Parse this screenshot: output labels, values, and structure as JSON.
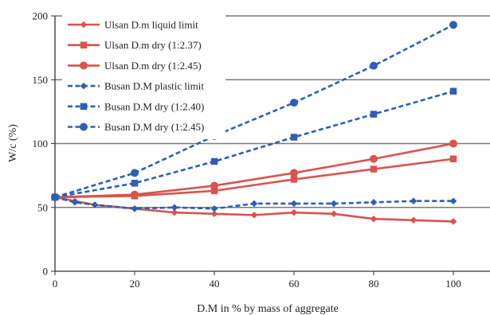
{
  "chart_data": {
    "type": "line",
    "xlabel": "D.M in % by mass of aggregate",
    "ylabel": "W/c (%)",
    "xlim": [
      0,
      100
    ],
    "ylim": [
      0,
      200
    ],
    "x_ticks": [
      "0",
      "20",
      "40",
      "60",
      "80",
      "100"
    ],
    "y_ticks": [
      "0",
      "50",
      "100",
      "150",
      "200"
    ],
    "grid": "horizontal",
    "legend_position": "top-left",
    "series": [
      {
        "name": "Ulsan D.m liquid limit",
        "color": "#d9534f",
        "line": "solid",
        "marker": "diamond",
        "x": [
          0,
          5,
          10,
          20,
          30,
          40,
          50,
          60,
          70,
          80,
          90,
          100
        ],
        "y": [
          58,
          55,
          52,
          49,
          46,
          45,
          44,
          46,
          45,
          41,
          40,
          39
        ]
      },
      {
        "name": "Ulsan D.m dry (1:2.37)",
        "color": "#d9534f",
        "line": "solid",
        "marker": "square",
        "x": [
          0,
          20,
          40,
          60,
          80,
          100
        ],
        "y": [
          58,
          59,
          63,
          72,
          80,
          88
        ]
      },
      {
        "name": " Ulsan D.m dry (1:2.45)",
        "color": "#d9534f",
        "line": "solid",
        "marker": "circle",
        "x": [
          0,
          20,
          40,
          60,
          80,
          100
        ],
        "y": [
          58,
          60,
          67,
          77,
          88,
          100
        ]
      },
      {
        "name": "Busan D.M plastic limit",
        "color": "#2e5fb5",
        "line": "dashed",
        "marker": "diamond",
        "x": [
          0,
          5,
          10,
          20,
          30,
          40,
          50,
          60,
          70,
          80,
          90,
          100
        ],
        "y": [
          58,
          54,
          52,
          49,
          50,
          49,
          53,
          53,
          53,
          54,
          55,
          55
        ]
      },
      {
        "name": "Busan D.M dry (1:2.40)",
        "color": "#2e5fb5",
        "line": "dashed",
        "marker": "square",
        "x": [
          0,
          20,
          40,
          60,
          80,
          100
        ],
        "y": [
          58,
          69,
          86,
          105,
          123,
          141
        ]
      },
      {
        "name": "Busan D.M dry (1:2.45)",
        "color": "#2e5fb5",
        "line": "dashed",
        "marker": "circle",
        "x": [
          0,
          20,
          40,
          60,
          80,
          100
        ],
        "y": [
          58,
          77,
          106,
          132,
          161,
          193
        ]
      }
    ]
  }
}
